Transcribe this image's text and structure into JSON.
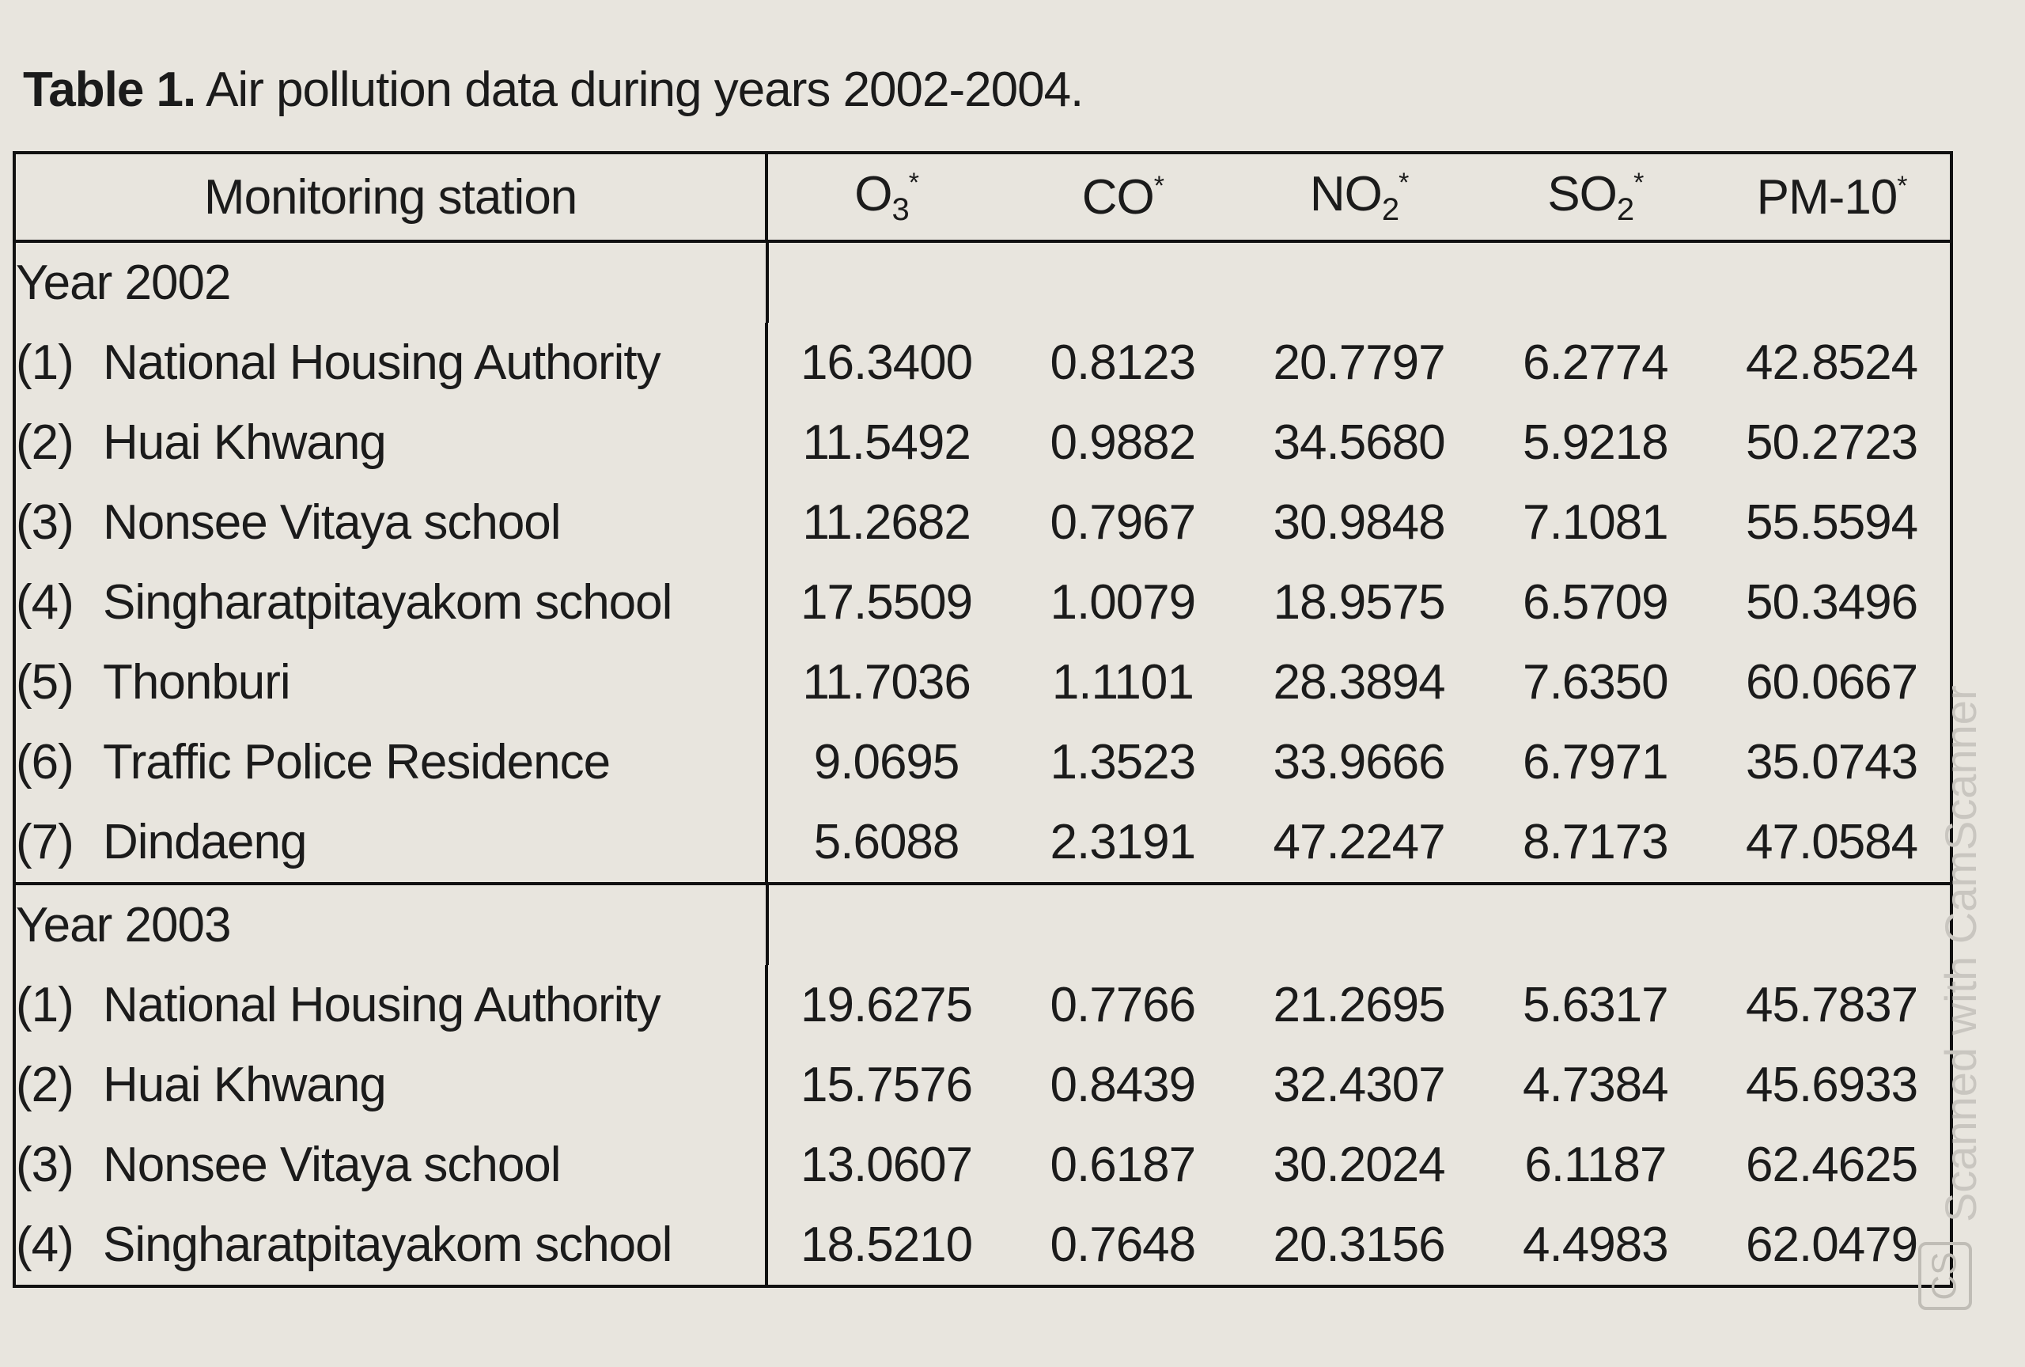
{
  "title": {
    "label": "Table 1.",
    "text": "Air pollution data during years 2002-2004."
  },
  "table": {
    "columns": [
      {
        "label": "Monitoring station"
      },
      {
        "label": "O",
        "sub": "3",
        "mark": "*"
      },
      {
        "label": "CO",
        "mark": "*"
      },
      {
        "label": "NO",
        "sub": "2",
        "mark": "*"
      },
      {
        "label": "SO",
        "sub": "2",
        "mark": "*"
      },
      {
        "label": "PM-10",
        "mark": "*"
      }
    ],
    "sections": [
      {
        "heading": "Year 2002",
        "rows": [
          {
            "index": "(1)",
            "station": "National Housing Authority",
            "values": [
              "16.3400",
              "0.8123",
              "20.7797",
              "6.2774",
              "42.8524"
            ]
          },
          {
            "index": "(2)",
            "station": "Huai Khwang",
            "values": [
              "11.5492",
              "0.9882",
              "34.5680",
              "5.9218",
              "50.2723"
            ]
          },
          {
            "index": "(3)",
            "station": "Nonsee Vitaya school",
            "values": [
              "11.2682",
              "0.7967",
              "30.9848",
              "7.1081",
              "55.5594"
            ]
          },
          {
            "index": "(4)",
            "station": "Singharatpitayakom school",
            "values": [
              "17.5509",
              "1.0079",
              "18.9575",
              "6.5709",
              "50.3496"
            ]
          },
          {
            "index": "(5)",
            "station": "Thonburi",
            "values": [
              "11.7036",
              "1.1101",
              "28.3894",
              "7.6350",
              "60.0667"
            ]
          },
          {
            "index": "(6)",
            "station": "Traffic Police Residence",
            "values": [
              "9.0695",
              "1.3523",
              "33.9666",
              "6.7971",
              "35.0743"
            ]
          },
          {
            "index": "(7)",
            "station": "Dindaeng",
            "values": [
              "5.6088",
              "2.3191",
              "47.2247",
              "8.7173",
              "47.0584"
            ]
          }
        ]
      },
      {
        "heading": "Year 2003",
        "rows": [
          {
            "index": "(1)",
            "station": "National Housing Authority",
            "values": [
              "19.6275",
              "0.7766",
              "21.2695",
              "5.6317",
              "45.7837"
            ]
          },
          {
            "index": "(2)",
            "station": "Huai Khwang",
            "values": [
              "15.7576",
              "0.8439",
              "32.4307",
              "4.7384",
              "45.6933"
            ]
          },
          {
            "index": "(3)",
            "station": "Nonsee Vitaya school",
            "values": [
              "13.0607",
              "0.6187",
              "30.2024",
              "6.1187",
              "62.4625"
            ]
          },
          {
            "index": "(4)",
            "station": "Singharatpitayakom school",
            "values": [
              "18.5210",
              "0.7648",
              "20.3156",
              "4.4983",
              "62.0479"
            ]
          }
        ]
      }
    ]
  },
  "watermark": {
    "logo": "CS",
    "text": "Scanned with CamScanner"
  }
}
